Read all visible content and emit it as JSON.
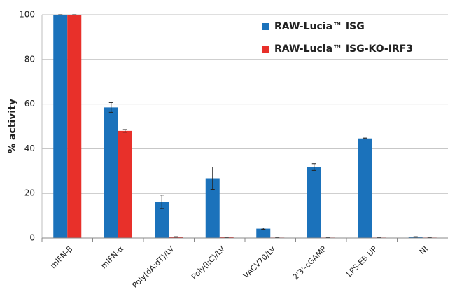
{
  "chart_data": {
    "type": "bar",
    "categories": [
      "mIFN-β",
      "mIFN-α",
      "Poly(dA:dT)/LV",
      "Poly(I:C)/LV",
      "VACV70/LV",
      "2'3'-cGAMP",
      "LPS-EB UP",
      "NI"
    ],
    "y_label": "% activity",
    "series": [
      {
        "name": "RAW-Lucia™ ISG",
        "color": "#1b72bb",
        "values": [
          100,
          58.5,
          16.2,
          26.8,
          4.2,
          31.8,
          44.6,
          0.5
        ],
        "errors": [
          0,
          2.2,
          3,
          5,
          0.3,
          1.5,
          0.2,
          0.1
        ]
      },
      {
        "name": "RAW-Lucia™ ISG-KO-IRF3",
        "color": "#e8302a",
        "values": [
          100,
          48,
          0.5,
          0.3,
          0.2,
          0.2,
          0.2,
          0.2
        ],
        "errors": [
          0,
          0.6,
          0.1,
          0.1,
          0.1,
          0.1,
          0.1,
          0.1
        ]
      }
    ],
    "ylim": [
      0,
      100
    ],
    "yticks": [
      0,
      20,
      40,
      60,
      80,
      100
    ],
    "grid": true,
    "legend": "top-right"
  }
}
